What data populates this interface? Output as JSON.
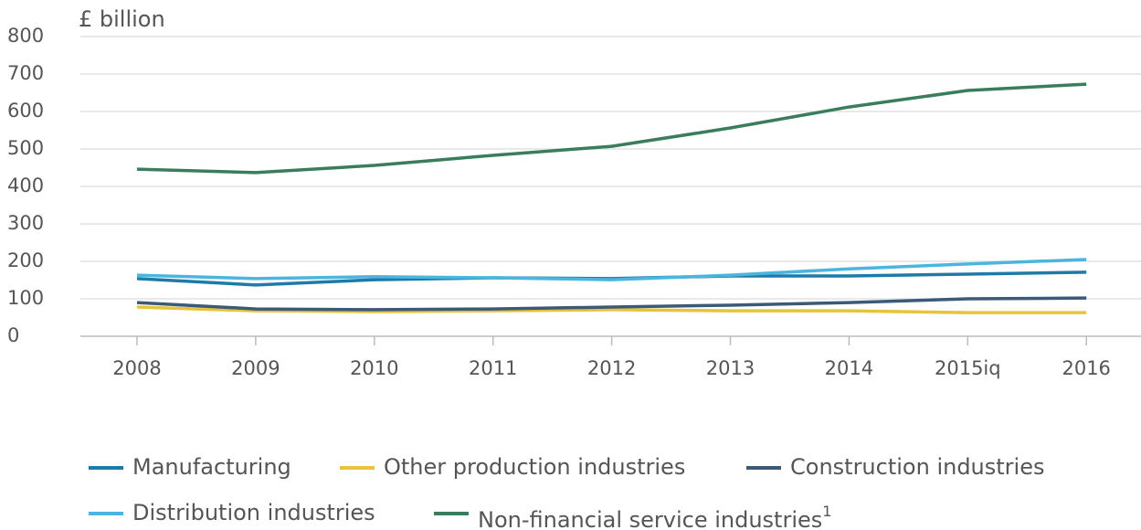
{
  "chart_data": {
    "type": "line",
    "y_label": "£ billion",
    "categories": [
      "2008",
      "2009",
      "2010",
      "2011",
      "2012",
      "2013",
      "2014",
      "2015iq",
      "2016"
    ],
    "series": [
      {
        "name": "Manufacturing",
        "color": "#1f7aa8",
        "values": [
          154,
          137,
          151,
          156,
          154,
          161,
          161,
          166,
          171
        ]
      },
      {
        "name": "Other production industries",
        "color": "#e8c23a",
        "values": [
          78,
          68,
          66,
          68,
          71,
          68,
          68,
          63,
          63
        ]
      },
      {
        "name": "Construction industries",
        "color": "#3b5a78",
        "values": [
          90,
          73,
          71,
          73,
          78,
          83,
          90,
          100,
          102
        ]
      },
      {
        "name": "Distribution industries",
        "color": "#4bb5e0",
        "values": [
          163,
          154,
          159,
          156,
          151,
          163,
          180,
          193,
          205
        ]
      },
      {
        "name": "Non-financial service industries",
        "superscript": "1",
        "color": "#3a7d5c",
        "values": [
          446,
          437,
          456,
          483,
          507,
          556,
          612,
          656,
          673
        ]
      }
    ],
    "ylim": [
      0,
      800
    ],
    "yticks": [
      0,
      100,
      200,
      300,
      400,
      500,
      600,
      700,
      800
    ],
    "grid": true
  }
}
